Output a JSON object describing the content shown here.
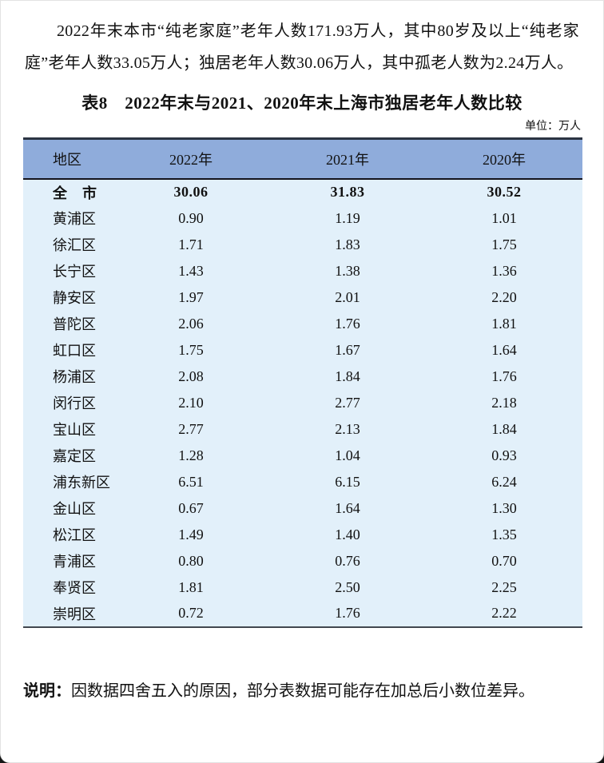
{
  "page": {
    "intro_paragraph": "2022年末本市“纯老家庭”老年人数171.93万人，其中80岁及以上“纯老家庭”老年人数33.05万人；独居老年人数30.06万人，其中孤老人数为2.24万人。",
    "table_title": "表8　2022年末与2021、2020年末上海市独居老年人数比较",
    "unit_note": "单位：万人",
    "footnote_label": "说明：",
    "footnote_text": "因数据四舍五入的原因，部分表数据可能存在加总后小数位差异。"
  },
  "colors": {
    "header_bg": "#8FACDB",
    "body_bg": "#E2F0FA",
    "table_top_border": "#2B3442",
    "header_underline": "#14141E",
    "table_bottom_border": "#42474F"
  },
  "table": {
    "columns": [
      "地区",
      "2022年",
      "2021年",
      "2020年"
    ],
    "rows": [
      {
        "region": "全　市",
        "y2022": "30.06",
        "y2021": "31.83",
        "y2020": "30.52",
        "bold": true
      },
      {
        "region": "黄浦区",
        "y2022": "0.90",
        "y2021": "1.19",
        "y2020": "1.01",
        "bold": false
      },
      {
        "region": "徐汇区",
        "y2022": "1.71",
        "y2021": "1.83",
        "y2020": "1.75",
        "bold": false
      },
      {
        "region": "长宁区",
        "y2022": "1.43",
        "y2021": "1.38",
        "y2020": "1.36",
        "bold": false
      },
      {
        "region": "静安区",
        "y2022": "1.97",
        "y2021": "2.01",
        "y2020": "2.20",
        "bold": false
      },
      {
        "region": "普陀区",
        "y2022": "2.06",
        "y2021": "1.76",
        "y2020": "1.81",
        "bold": false
      },
      {
        "region": "虹口区",
        "y2022": "1.75",
        "y2021": "1.67",
        "y2020": "1.64",
        "bold": false
      },
      {
        "region": "杨浦区",
        "y2022": "2.08",
        "y2021": "1.84",
        "y2020": "1.76",
        "bold": false
      },
      {
        "region": "闵行区",
        "y2022": "2.10",
        "y2021": "2.77",
        "y2020": "2.18",
        "bold": false
      },
      {
        "region": "宝山区",
        "y2022": "2.77",
        "y2021": "2.13",
        "y2020": "1.84",
        "bold": false
      },
      {
        "region": "嘉定区",
        "y2022": "1.28",
        "y2021": "1.04",
        "y2020": "0.93",
        "bold": false
      },
      {
        "region": "浦东新区",
        "y2022": "6.51",
        "y2021": "6.15",
        "y2020": "6.24",
        "bold": false
      },
      {
        "region": "金山区",
        "y2022": "0.67",
        "y2021": "1.64",
        "y2020": "1.30",
        "bold": false
      },
      {
        "region": "松江区",
        "y2022": "1.49",
        "y2021": "1.40",
        "y2020": "1.35",
        "bold": false
      },
      {
        "region": "青浦区",
        "y2022": "0.80",
        "y2021": "0.76",
        "y2020": "0.70",
        "bold": false
      },
      {
        "region": "奉贤区",
        "y2022": "1.81",
        "y2021": "2.50",
        "y2020": "2.25",
        "bold": false
      },
      {
        "region": "崇明区",
        "y2022": "0.72",
        "y2021": "1.76",
        "y2020": "2.22",
        "bold": false
      }
    ]
  }
}
